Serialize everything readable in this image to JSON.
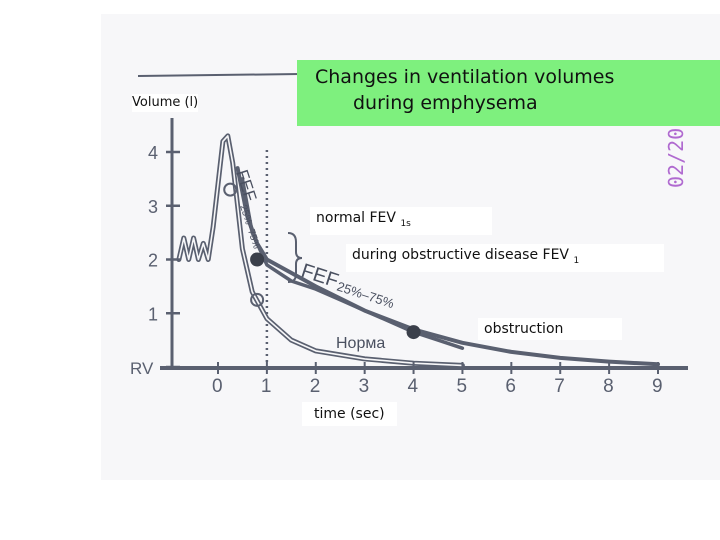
{
  "chart_data": {
    "type": "line",
    "title": "Changes  in  ventilation volumes during  emphysema",
    "title_line1": "Changes  in  ventilation volumes",
    "title_line2": "during  emphysema",
    "ylabel": "Volume (l)",
    "xlabel": "time  (sec)",
    "x_ticks": [
      "0",
      "1",
      "2",
      "3",
      "4",
      "5",
      "6",
      "7",
      "8",
      "9"
    ],
    "y_ticks": [
      "RV",
      "1",
      "2",
      "3",
      "4"
    ],
    "xlim": [
      -0.9,
      9.3
    ],
    "ylim": [
      0,
      4.4
    ],
    "grid": false,
    "series": [
      {
        "name": "Норма",
        "x": [
          -0.8,
          -0.7,
          -0.6,
          -0.5,
          -0.4,
          -0.3,
          -0.2,
          -0.1,
          0.0,
          0.1,
          0.2,
          0.3,
          0.4,
          0.5,
          0.7,
          1.0,
          1.5,
          2.0,
          3.0,
          4.0,
          5.0
        ],
        "y": [
          2.0,
          2.4,
          2.0,
          2.4,
          2.0,
          2.3,
          2.0,
          2.6,
          3.4,
          4.2,
          4.3,
          3.8,
          3.0,
          2.2,
          1.4,
          0.9,
          0.5,
          0.3,
          0.15,
          0.07,
          0.03
        ]
      },
      {
        "name": "normal",
        "x": [
          0.4,
          0.6,
          0.8,
          1.0,
          1.5,
          2.0,
          3.0,
          4.0,
          5.0,
          6.0,
          7.0,
          8.0,
          9.0
        ],
        "y": [
          3.7,
          2.8,
          2.3,
          2.0,
          1.75,
          1.5,
          1.05,
          0.7,
          0.45,
          0.28,
          0.17,
          0.1,
          0.05
        ]
      },
      {
        "name": "obstruction",
        "x": [
          0.5,
          0.7,
          1.0,
          1.5,
          2.0,
          2.5,
          3.0,
          3.5,
          4.0,
          4.5,
          5.0
        ],
        "y": [
          3.5,
          2.5,
          1.9,
          1.6,
          1.45,
          1.25,
          1.05,
          0.85,
          0.65,
          0.5,
          0.35
        ]
      }
    ],
    "markers": [
      {
        "x": 0.8,
        "y": 2.0
      },
      {
        "x": 4.0,
        "y": 0.65
      }
    ],
    "vline_x": 1.0,
    "bracket_label": "FEF",
    "bracket_sub": "25%–75%",
    "fef_label": "FEF",
    "fef_sub": "25%–75%",
    "norma_label": "Норма"
  },
  "annotations": {
    "normal": {
      "text": "normal   FEV",
      "sub": "1s"
    },
    "obstructive": {
      "text": "during  obstructive  disease  FEV",
      "sub": "1"
    },
    "obstruction": {
      "text": "obstruction"
    }
  },
  "stamp_text": "02/20",
  "colors": {
    "title_bg": "#7ef07e",
    "curve": "#5a6070",
    "photo_bg": "#f7f7f9",
    "stamp": "#b06ad0"
  }
}
